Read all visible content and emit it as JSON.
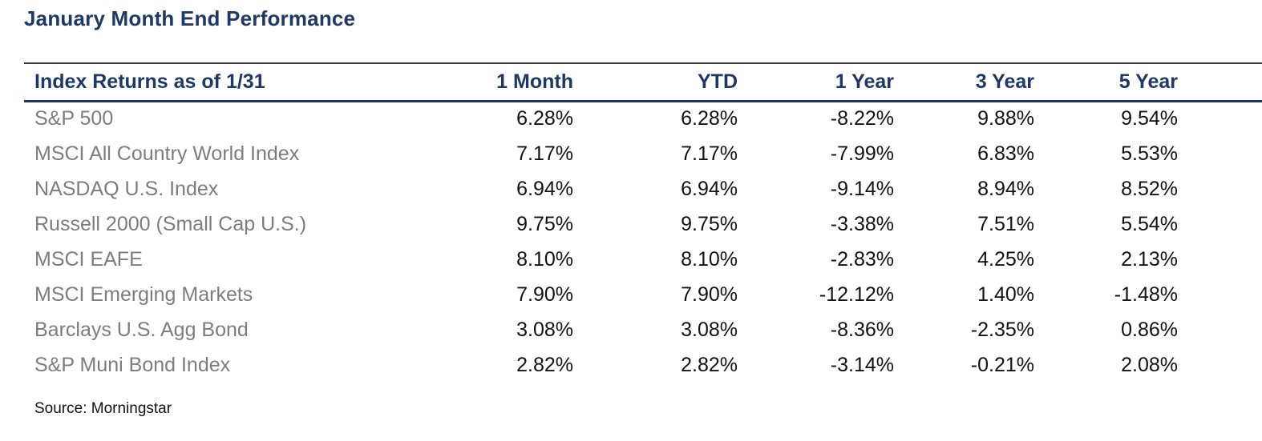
{
  "title": "January Month End Performance",
  "source": "Source: Morningstar",
  "colors": {
    "accent_navy": "#1f3864",
    "label_gray": "#7d7d7d",
    "value_black": "#121212"
  },
  "chart_data": {
    "type": "table",
    "title": "January Month End Performance",
    "header": [
      "Index Returns as of 1/31",
      "1 Month",
      "YTD",
      "1 Year",
      "3 Year",
      "5 Year"
    ],
    "rows": [
      [
        "S&P 500",
        "6.28%",
        "6.28%",
        "-8.22%",
        "9.88%",
        "9.54%"
      ],
      [
        "MSCI All Country World Index",
        "7.17%",
        "7.17%",
        "-7.99%",
        "6.83%",
        "5.53%"
      ],
      [
        "NASDAQ U.S. Index",
        "6.94%",
        "6.94%",
        "-9.14%",
        "8.94%",
        "8.52%"
      ],
      [
        "Russell 2000 (Small Cap U.S.)",
        "9.75%",
        "9.75%",
        "-3.38%",
        "7.51%",
        "5.54%"
      ],
      [
        "MSCI EAFE",
        "8.10%",
        "8.10%",
        "-2.83%",
        "4.25%",
        "2.13%"
      ],
      [
        "MSCI Emerging Markets",
        "7.90%",
        "7.90%",
        "-12.12%",
        "1.40%",
        "-1.48%"
      ],
      [
        "Barclays U.S. Agg Bond",
        "3.08%",
        "3.08%",
        "-8.36%",
        "-2.35%",
        "0.86%"
      ],
      [
        "S&P Muni Bond Index",
        "2.82%",
        "2.82%",
        "-3.14%",
        "-0.21%",
        "2.08%"
      ]
    ],
    "source": "Source: Morningstar"
  }
}
